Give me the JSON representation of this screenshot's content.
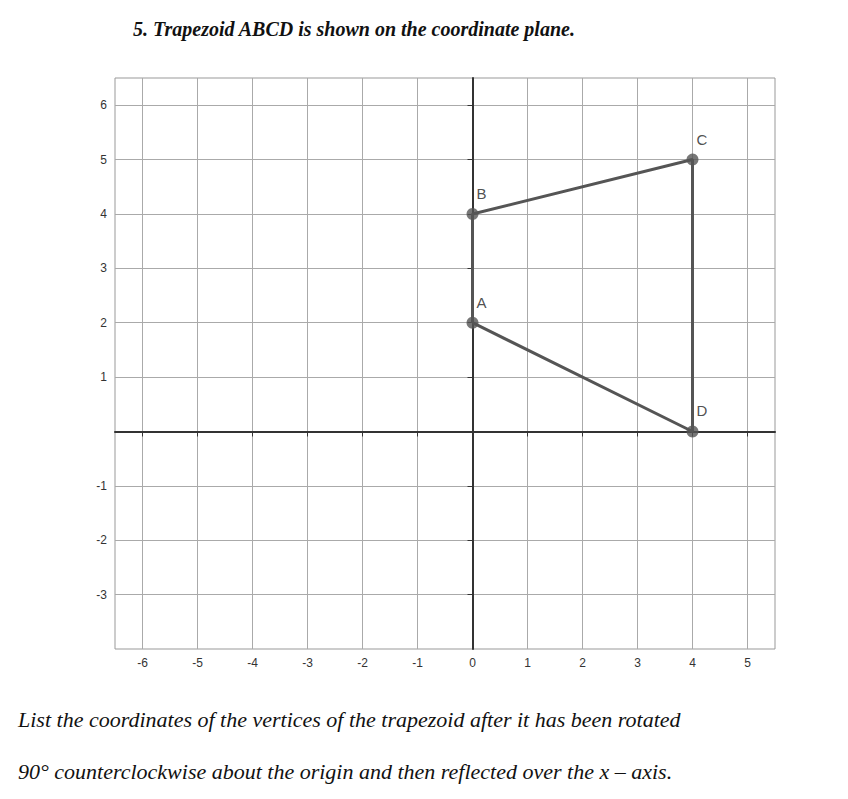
{
  "chart_data": {
    "type": "line",
    "title": "5. Trapezoid ABCD is shown on the coordinate plane.",
    "annotations": [
      "List the coordinates of the vertices of the trapezoid after it has been rotated",
      "90° counterclockwise about the origin and then reflected over the x – axis."
    ],
    "x": [
      0,
      0,
      4,
      4
    ],
    "values": [
      2,
      4,
      5,
      0
    ],
    "point_labels": [
      "A",
      "B",
      "C",
      "D"
    ],
    "color": "#555555",
    "marker": "circle",
    "xlim": [
      -6.5,
      5.5
    ],
    "xticks": [
      -6,
      -5,
      -4,
      -3,
      -2,
      -1,
      0,
      1,
      2,
      3,
      4,
      5
    ],
    "ylim": [
      -4,
      6.5
    ],
    "yticks": [
      -3,
      -2,
      -1,
      1,
      2,
      3,
      4,
      5,
      6
    ],
    "grid": true
  }
}
